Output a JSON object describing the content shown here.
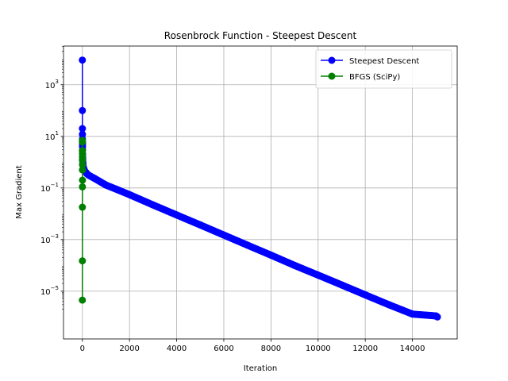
{
  "chart_data": {
    "type": "line",
    "title": "Rosenbrock Function - Steepest Descent",
    "xlabel": "Iteration",
    "ylabel": "Max Gradient",
    "xlim": [
      -800,
      15900
    ],
    "ylim_log10": [
      -6.85,
      4.5
    ],
    "yscale": "log",
    "grid": true,
    "legend_position": "top-right",
    "x_ticks": [
      0,
      2000,
      4000,
      6000,
      8000,
      10000,
      12000,
      14000
    ],
    "x_tick_labels": [
      "0",
      "2000",
      "4000",
      "6000",
      "8000",
      "10000",
      "12000",
      "14000"
    ],
    "y_ticks_exp": [
      3,
      1,
      -1,
      -3,
      -5
    ],
    "series": [
      {
        "name": "Steepest Descent",
        "color": "#0000ff",
        "points": [
          [
            0,
            9000
          ],
          [
            1,
            100
          ],
          [
            2,
            20
          ],
          [
            3,
            12
          ],
          [
            4,
            8
          ],
          [
            5,
            6
          ],
          [
            6,
            5
          ],
          [
            7,
            4
          ],
          [
            8,
            3
          ],
          [
            10,
            2
          ],
          [
            13,
            1.5
          ],
          [
            16,
            1.2
          ],
          [
            20,
            1.0
          ],
          [
            25,
            0.85
          ],
          [
            30,
            0.75
          ],
          [
            40,
            0.65
          ],
          [
            50,
            0.6
          ],
          [
            60,
            0.55
          ],
          [
            80,
            0.5
          ],
          [
            100,
            0.45
          ],
          [
            150,
            0.4
          ],
          [
            200,
            0.35
          ],
          [
            300,
            0.3
          ],
          [
            500,
            0.24
          ],
          [
            1000,
            0.13
          ],
          [
            1500,
            0.085
          ],
          [
            2000,
            0.055
          ],
          [
            3000,
            0.022
          ],
          [
            4000,
            0.009
          ],
          [
            5000,
            0.0037
          ],
          [
            6000,
            0.0015
          ],
          [
            7000,
            0.00061
          ],
          [
            8000,
            0.00025
          ],
          [
            9000,
            0.0001
          ],
          [
            10000,
            4.2e-05
          ],
          [
            11000,
            1.75e-05
          ],
          [
            12000,
            7.2e-06
          ],
          [
            13000,
            3e-06
          ],
          [
            14000,
            1.3e-06
          ],
          [
            15000,
            1.1e-06
          ]
        ]
      },
      {
        "name": "BFGS (SciPy)",
        "color": "#008000",
        "points": [
          [
            0,
            7
          ],
          [
            2,
            6
          ],
          [
            1,
            2.8
          ],
          [
            3,
            2.2
          ],
          [
            4,
            1.6
          ],
          [
            2,
            1.2
          ],
          [
            5,
            0.8
          ],
          [
            4,
            0.5
          ],
          [
            6,
            0.2
          ],
          [
            3,
            0.11
          ],
          [
            1,
            0.018
          ],
          [
            2,
            0.00015
          ],
          [
            0,
            4.5e-06
          ]
        ]
      }
    ]
  }
}
